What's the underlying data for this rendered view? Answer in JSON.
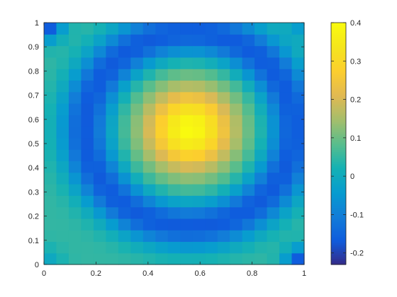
{
  "chart_data": {
    "type": "heatmap",
    "title": "",
    "xlabel": "",
    "ylabel": "",
    "xlim": [
      0,
      1
    ],
    "ylim": [
      0,
      1
    ],
    "x_ticks": [
      "0",
      "0.2",
      "0.4",
      "0.6",
      "0.8",
      "1"
    ],
    "y_ticks": [
      "0",
      "0.1",
      "0.2",
      "0.3",
      "0.4",
      "0.5",
      "0.6",
      "0.7",
      "0.8",
      "0.9",
      "1"
    ],
    "colormap": "parula",
    "grid": false,
    "legend": "none",
    "colorbar": {
      "placement": "right",
      "clim": [
        -0.23,
        0.4
      ],
      "ticks": [
        "-0.2",
        "-0.1",
        "0",
        "0.1",
        "0.2",
        "0.3",
        "0.4"
      ]
    },
    "grid_resolution": 21,
    "features": {
      "peak": {
        "x": 0.56,
        "y": 0.56,
        "value": 0.4
      },
      "trough_ring": {
        "center_x": 0.56,
        "center_y": 0.56,
        "radius": 0.4,
        "value": -0.17
      },
      "corner_extremes": [
        {
          "x": 0.0,
          "y": 1.0,
          "value": -0.22
        },
        {
          "x": 1.0,
          "y": 0.0,
          "value": -0.22
        },
        {
          "x": 0.0,
          "y": 0.0,
          "value": -0.02
        },
        {
          "x": 1.0,
          "y": 1.0,
          "value": -0.05
        }
      ],
      "edge_value": 0.05
    },
    "colors": {
      "low": "#352a87",
      "mid": "#0fbbb0",
      "high": "#f9fb0e"
    }
  }
}
